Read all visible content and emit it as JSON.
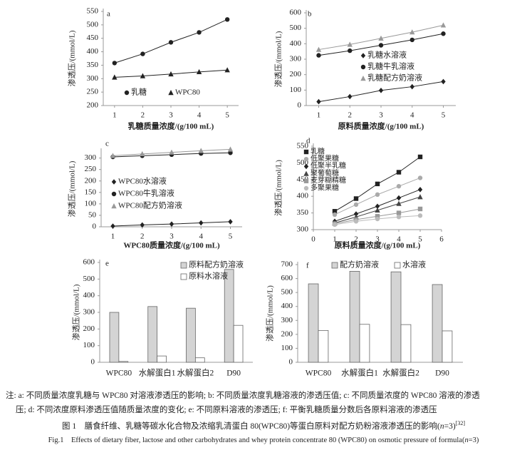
{
  "chart_data": [
    {
      "type": "line",
      "label": "a",
      "y_label": "渗透压/(mmol/L)",
      "x_label": "乳糖质量浓度/(g/100 mL)",
      "x": [
        1,
        2,
        3,
        4,
        5
      ],
      "xlim": [
        0.6,
        5.4
      ],
      "xticks": [
        1,
        2,
        3,
        4,
        5
      ],
      "ylim": [
        200,
        550
      ],
      "yticks": [
        200,
        250,
        300,
        350,
        400,
        450,
        500,
        550
      ],
      "series": [
        {
          "name": "乳糖",
          "color": "#222222",
          "marker": "circle",
          "values": [
            358,
            392,
            435,
            472,
            520
          ]
        },
        {
          "name": "WPC80",
          "color": "#222222",
          "marker": "triangle",
          "values": [
            305,
            310,
            317,
            325,
            332
          ]
        }
      ]
    },
    {
      "type": "line",
      "label": "b",
      "y_label": "渗透压/(mmol/L)",
      "x_label": "原料质量浓度/(g/100 mL)",
      "x": [
        1,
        2,
        3,
        4,
        5
      ],
      "xlim": [
        0.6,
        5.4
      ],
      "xticks": [
        1,
        2,
        3,
        4,
        5
      ],
      "ylim": [
        0,
        600
      ],
      "yticks": [
        0,
        100,
        200,
        300,
        400,
        500,
        600
      ],
      "series": [
        {
          "name": "乳糖水溶液",
          "color": "#222222",
          "marker": "diamond",
          "values": [
            25,
            58,
            98,
            122,
            155
          ]
        },
        {
          "name": "乳糖牛乳溶液",
          "color": "#222222",
          "marker": "circle",
          "values": [
            325,
            355,
            390,
            425,
            465
          ]
        },
        {
          "name": "乳糖配方奶溶液",
          "color": "#999999",
          "marker": "triangle",
          "values": [
            362,
            395,
            435,
            475,
            520
          ]
        }
      ]
    },
    {
      "type": "line",
      "label": "c",
      "y_label": "渗透压/(mmol/L)",
      "x_label": "WPC80质量浓度/(g/100 mL)",
      "x": [
        1,
        2,
        3,
        4,
        5
      ],
      "xlim": [
        0.6,
        5.4
      ],
      "xticks": [
        1,
        2,
        3,
        4,
        5
      ],
      "ylim": [
        0,
        330
      ],
      "yticks": [
        0,
        50,
        100,
        150,
        200,
        250,
        300
      ],
      "series": [
        {
          "name": "WPC80水溶液",
          "color": "#222222",
          "marker": "diamond",
          "values": [
            3,
            8,
            12,
            17,
            22
          ]
        },
        {
          "name": "WPC80牛乳溶液",
          "color": "#222222",
          "marker": "circle",
          "values": [
            305,
            310,
            315,
            320,
            323
          ]
        },
        {
          "name": "WPC80配方奶溶液",
          "color": "#999999",
          "marker": "triangle",
          "values": [
            310,
            318,
            325,
            332,
            338
          ]
        }
      ]
    },
    {
      "type": "line",
      "label": "d",
      "y_label": "渗透压/(mmol/L)",
      "x_label": "原料质量浓度/(g/100 mL)",
      "x": [
        1,
        2,
        3,
        4,
        5
      ],
      "xlim": [
        0,
        6
      ],
      "xticks": [
        0,
        1,
        2,
        3,
        4,
        5,
        6
      ],
      "ylim": [
        300,
        550
      ],
      "yticks": [
        300,
        350,
        400,
        450,
        500,
        550
      ],
      "series": [
        {
          "name": "乳糖",
          "color": "#222222",
          "marker": "square",
          "values": [
            355,
            393,
            437,
            472,
            518
          ]
        },
        {
          "name": "低聚果糖",
          "color": "#aaaaaa",
          "marker": "circle",
          "values": [
            345,
            375,
            405,
            430,
            455
          ]
        },
        {
          "name": "低聚半乳糖",
          "color": "#222222",
          "marker": "diamond",
          "values": [
            325,
            347,
            370,
            395,
            420
          ]
        },
        {
          "name": "聚葡萄糖",
          "color": "#444444",
          "marker": "triangle",
          "values": [
            320,
            338,
            358,
            378,
            398
          ]
        },
        {
          "name": "麦芽糊精糖",
          "color": "#999999",
          "marker": "square",
          "values": [
            318,
            330,
            340,
            350,
            362
          ]
        },
        {
          "name": "多聚果糖",
          "color": "#bbbbbb",
          "marker": "circle",
          "values": [
            315,
            325,
            332,
            338,
            342
          ]
        }
      ]
    },
    {
      "type": "bar",
      "label": "e",
      "y_label": "渗透压/(mmol/L)",
      "categories": [
        "WPC80",
        "水解蛋白1",
        "水解蛋白2",
        "D90"
      ],
      "ylim": [
        0,
        600
      ],
      "yticks": [
        0,
        100,
        200,
        300,
        400,
        500,
        600
      ],
      "series": [
        {
          "name": "原料配方奶溶液",
          "color": "#d4d4d4",
          "values": [
            300,
            335,
            325,
            558
          ]
        },
        {
          "name": "原料水溶液",
          "color": "#ffffff",
          "values": [
            5,
            38,
            27,
            222
          ]
        }
      ]
    },
    {
      "type": "bar",
      "label": "f",
      "y_label": "渗透压/(mmol/L)",
      "categories": [
        "WPC80",
        "水解蛋白1",
        "水解蛋白2",
        "D90"
      ],
      "ylim": [
        0,
        700
      ],
      "yticks": [
        0,
        100,
        200,
        300,
        400,
        500,
        600,
        700
      ],
      "series": [
        {
          "name": "配方奶溶液",
          "color": "#d4d4d4",
          "values": [
            562,
            652,
            648,
            557
          ]
        },
        {
          "name": "水溶液",
          "color": "#ffffff",
          "values": [
            228,
            272,
            270,
            225
          ]
        }
      ]
    }
  ],
  "caption": {
    "note_1": "注: a: 不同质量浓度乳糖与 WPC80 对溶液渗透压的影响; b: 不同质量浓度乳糖溶液的渗透压值; c: 不同质量浓度的 WPC80 溶液的渗透",
    "note_2": "压; d: 不同浓度原料渗透压值随质量浓度的变化; e: 不同原料溶液的渗透压; f: 平衡乳糖质量分数后各原料溶液的渗透压",
    "cn_1": "图 1　膳食纤维、乳糖等碳水化合物及浓缩乳清蛋白 80(WPC80)等蛋白原料对配方奶粉溶液渗透压的影响(",
    "cn_n": "n",
    "cn_2": "=3)",
    "cn_ref": "[32]",
    "en_1": "Fig.1　Effects of dietary fiber, lactose and other carbohydrates and whey protein concentrate 80 (WPC80) on osmotic pressure of formula(",
    "en_n": "n",
    "en_2": "=3)"
  }
}
